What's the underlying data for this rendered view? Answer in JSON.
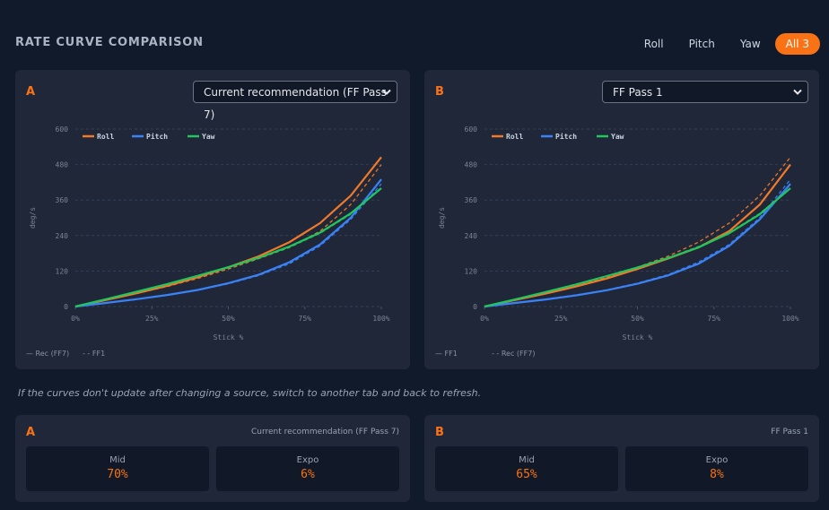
{
  "header": {
    "title": "RATE CURVE COMPARISON",
    "tabs": [
      "Roll",
      "Pitch",
      "Yaw",
      "All 3"
    ],
    "active_tab": 3
  },
  "chart_data": [
    {
      "type": "line",
      "panel_label": "A",
      "source": "Current recommendation (FF Pass 7)",
      "x": [
        0,
        10,
        20,
        30,
        40,
        50,
        60,
        70,
        80,
        90,
        100
      ],
      "xlim": [
        0,
        100
      ],
      "xticks": [
        {
          "value": 0,
          "label": "0%"
        },
        {
          "value": 25,
          "label": "25%"
        },
        {
          "value": 50,
          "label": "50%"
        },
        {
          "value": 75,
          "label": "75%"
        },
        {
          "value": 100,
          "label": "100%"
        }
      ],
      "ylim": [
        0,
        600
      ],
      "yticks": [
        0,
        120,
        240,
        360,
        480,
        600
      ],
      "xlabel": "Stick %",
      "ylabel": "deg/s",
      "grid": true,
      "series": [
        {
          "name": "Roll",
          "color": "#f07a2a",
          "values": [
            0,
            22,
            45,
            70,
            99,
            133,
            170,
            218,
            282,
            375,
            505
          ],
          "compare_values": [
            0,
            22,
            44,
            68,
            95,
            127,
            162,
            200,
            255,
            345,
            480
          ]
        },
        {
          "name": "Pitch",
          "color": "#3b82f6",
          "values": [
            0,
            12,
            25,
            39,
            56,
            79,
            108,
            150,
            210,
            300,
            430
          ],
          "compare_values": [
            0,
            12,
            24,
            38,
            55,
            77,
            105,
            145,
            205,
            295,
            415
          ]
        },
        {
          "name": "Yaw",
          "color": "#22c55e",
          "values": [
            0,
            25,
            50,
            76,
            104,
            133,
            165,
            203,
            250,
            315,
            400
          ],
          "compare_values": [
            0,
            24,
            49,
            75,
            103,
            132,
            164,
            200,
            248,
            312,
            400
          ]
        }
      ],
      "style_legend": [
        "— Rec (FF7)",
        "- - FF1"
      ]
    },
    {
      "type": "line",
      "panel_label": "B",
      "source": "FF Pass 1",
      "x": [
        0,
        10,
        20,
        30,
        40,
        50,
        60,
        70,
        80,
        90,
        100
      ],
      "xlim": [
        0,
        100
      ],
      "xticks": [
        {
          "value": 0,
          "label": "0%"
        },
        {
          "value": 25,
          "label": "25%"
        },
        {
          "value": 50,
          "label": "50%"
        },
        {
          "value": 75,
          "label": "75%"
        },
        {
          "value": 100,
          "label": "100%"
        }
      ],
      "ylim": [
        0,
        600
      ],
      "yticks": [
        0,
        120,
        240,
        360,
        480,
        600
      ],
      "xlabel": "Stick %",
      "ylabel": "deg/s",
      "grid": true,
      "series": [
        {
          "name": "Roll",
          "color": "#f07a2a",
          "values": [
            0,
            22,
            44,
            68,
            95,
            127,
            162,
            200,
            255,
            345,
            480
          ],
          "compare_values": [
            0,
            22,
            45,
            70,
            99,
            133,
            170,
            218,
            282,
            375,
            505
          ]
        },
        {
          "name": "Pitch",
          "color": "#3b82f6",
          "values": [
            0,
            12,
            24,
            38,
            55,
            77,
            105,
            145,
            205,
            295,
            415
          ],
          "compare_values": [
            0,
            12,
            25,
            39,
            56,
            79,
            108,
            150,
            210,
            300,
            430
          ]
        },
        {
          "name": "Yaw",
          "color": "#22c55e",
          "values": [
            0,
            24,
            49,
            75,
            103,
            132,
            164,
            200,
            248,
            312,
            400
          ],
          "compare_values": [
            0,
            25,
            50,
            76,
            104,
            133,
            165,
            203,
            250,
            315,
            400
          ]
        }
      ],
      "style_legend": [
        "— FF1",
        "- - Rec (FF7)"
      ]
    }
  ],
  "note": "If the curves don't update after changing a source, switch to another tab and back to refresh.",
  "summary": [
    {
      "label": "A",
      "source": "Current recommendation (FF Pass 7)",
      "stats": [
        {
          "name": "Mid",
          "value": "70%"
        },
        {
          "name": "Expo",
          "value": "6%"
        }
      ]
    },
    {
      "label": "B",
      "source": "FF Pass 1",
      "stats": [
        {
          "name": "Mid",
          "value": "65%"
        },
        {
          "name": "Expo",
          "value": "8%"
        }
      ]
    }
  ]
}
